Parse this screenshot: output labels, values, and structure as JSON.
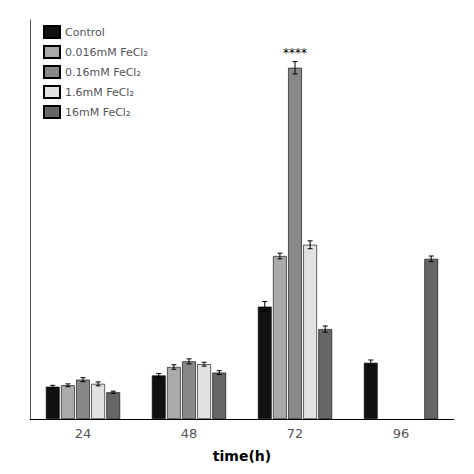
{
  "chart_data": {
    "type": "bar",
    "xlabel": "time(h)",
    "categories": [
      "24",
      "48",
      "72",
      "96"
    ],
    "series": [
      {
        "name": "Control",
        "color": "#111111",
        "values": [
          0.115,
          0.155,
          0.4,
          0.2
        ],
        "errors": [
          0.005,
          0.007,
          0.018,
          0.01
        ]
      },
      {
        "name": "0.016mM FeCl₂",
        "color": "#aaaaaa",
        "values": [
          0.12,
          0.185,
          0.58,
          null
        ],
        "errors": [
          0.005,
          0.008,
          0.01,
          null
        ]
      },
      {
        "name": "0.16mM FeCl₂",
        "color": "#888888",
        "values": [
          0.14,
          0.205,
          1.25,
          null
        ],
        "errors": [
          0.007,
          0.009,
          0.022,
          null
        ]
      },
      {
        "name": "1.6mM FeCl₂",
        "color": "#e2e2e2",
        "values": [
          0.125,
          0.195,
          0.62,
          null
        ],
        "errors": [
          0.007,
          0.007,
          0.014,
          null
        ]
      },
      {
        "name": "16mM FeCl₂",
        "color": "#666666",
        "values": [
          0.095,
          0.165,
          0.32,
          0.57
        ],
        "errors": [
          0.004,
          0.007,
          0.011,
          0.01
        ]
      }
    ],
    "annotations": [
      {
        "text": "****",
        "series": "0.16mM FeCl₂",
        "category": "72"
      }
    ],
    "ylim": [
      0,
      1.42
    ],
    "yticks": [],
    "grid": false,
    "legend": "upper left",
    "tick_labels": "x"
  }
}
